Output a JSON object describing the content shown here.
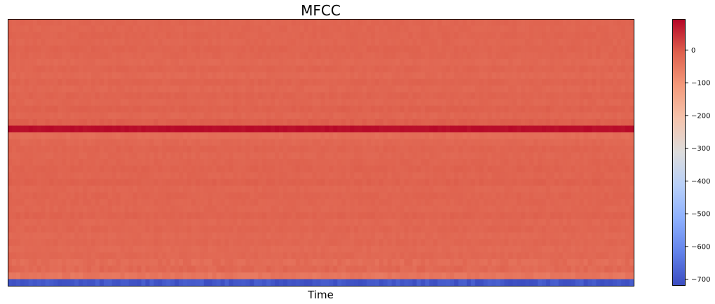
{
  "chart_data": {
    "type": "heatmap",
    "title": "MFCC",
    "xlabel": "Time",
    "ylabel": "",
    "colormap": "coolwarm",
    "colorbar": {
      "range": [
        -720,
        95
      ],
      "ticks": [
        0,
        -100,
        -200,
        -300,
        -400,
        -500,
        -600,
        -700
      ],
      "tick_labels": [
        "0",
        "−100",
        "−200",
        "−300",
        "−400",
        "−500",
        "−600",
        "−700"
      ]
    },
    "n_coefficients": 40,
    "n_frames": 300,
    "coefficient_means_top_to_bottom": [
      -16,
      -17,
      -15,
      -18,
      -14,
      -16,
      -22,
      -15,
      -22,
      -14,
      -20,
      -13,
      -18,
      -10,
      -18,
      -8,
      85,
      -30,
      -20,
      -14,
      -18,
      -15,
      -12,
      -16,
      -10,
      -18,
      -14,
      -16,
      -18,
      -12,
      -20,
      -16,
      -22,
      -18,
      -24,
      -20,
      -28,
      -22,
      -45,
      -700
    ],
    "axes_ticks_visible": false
  }
}
